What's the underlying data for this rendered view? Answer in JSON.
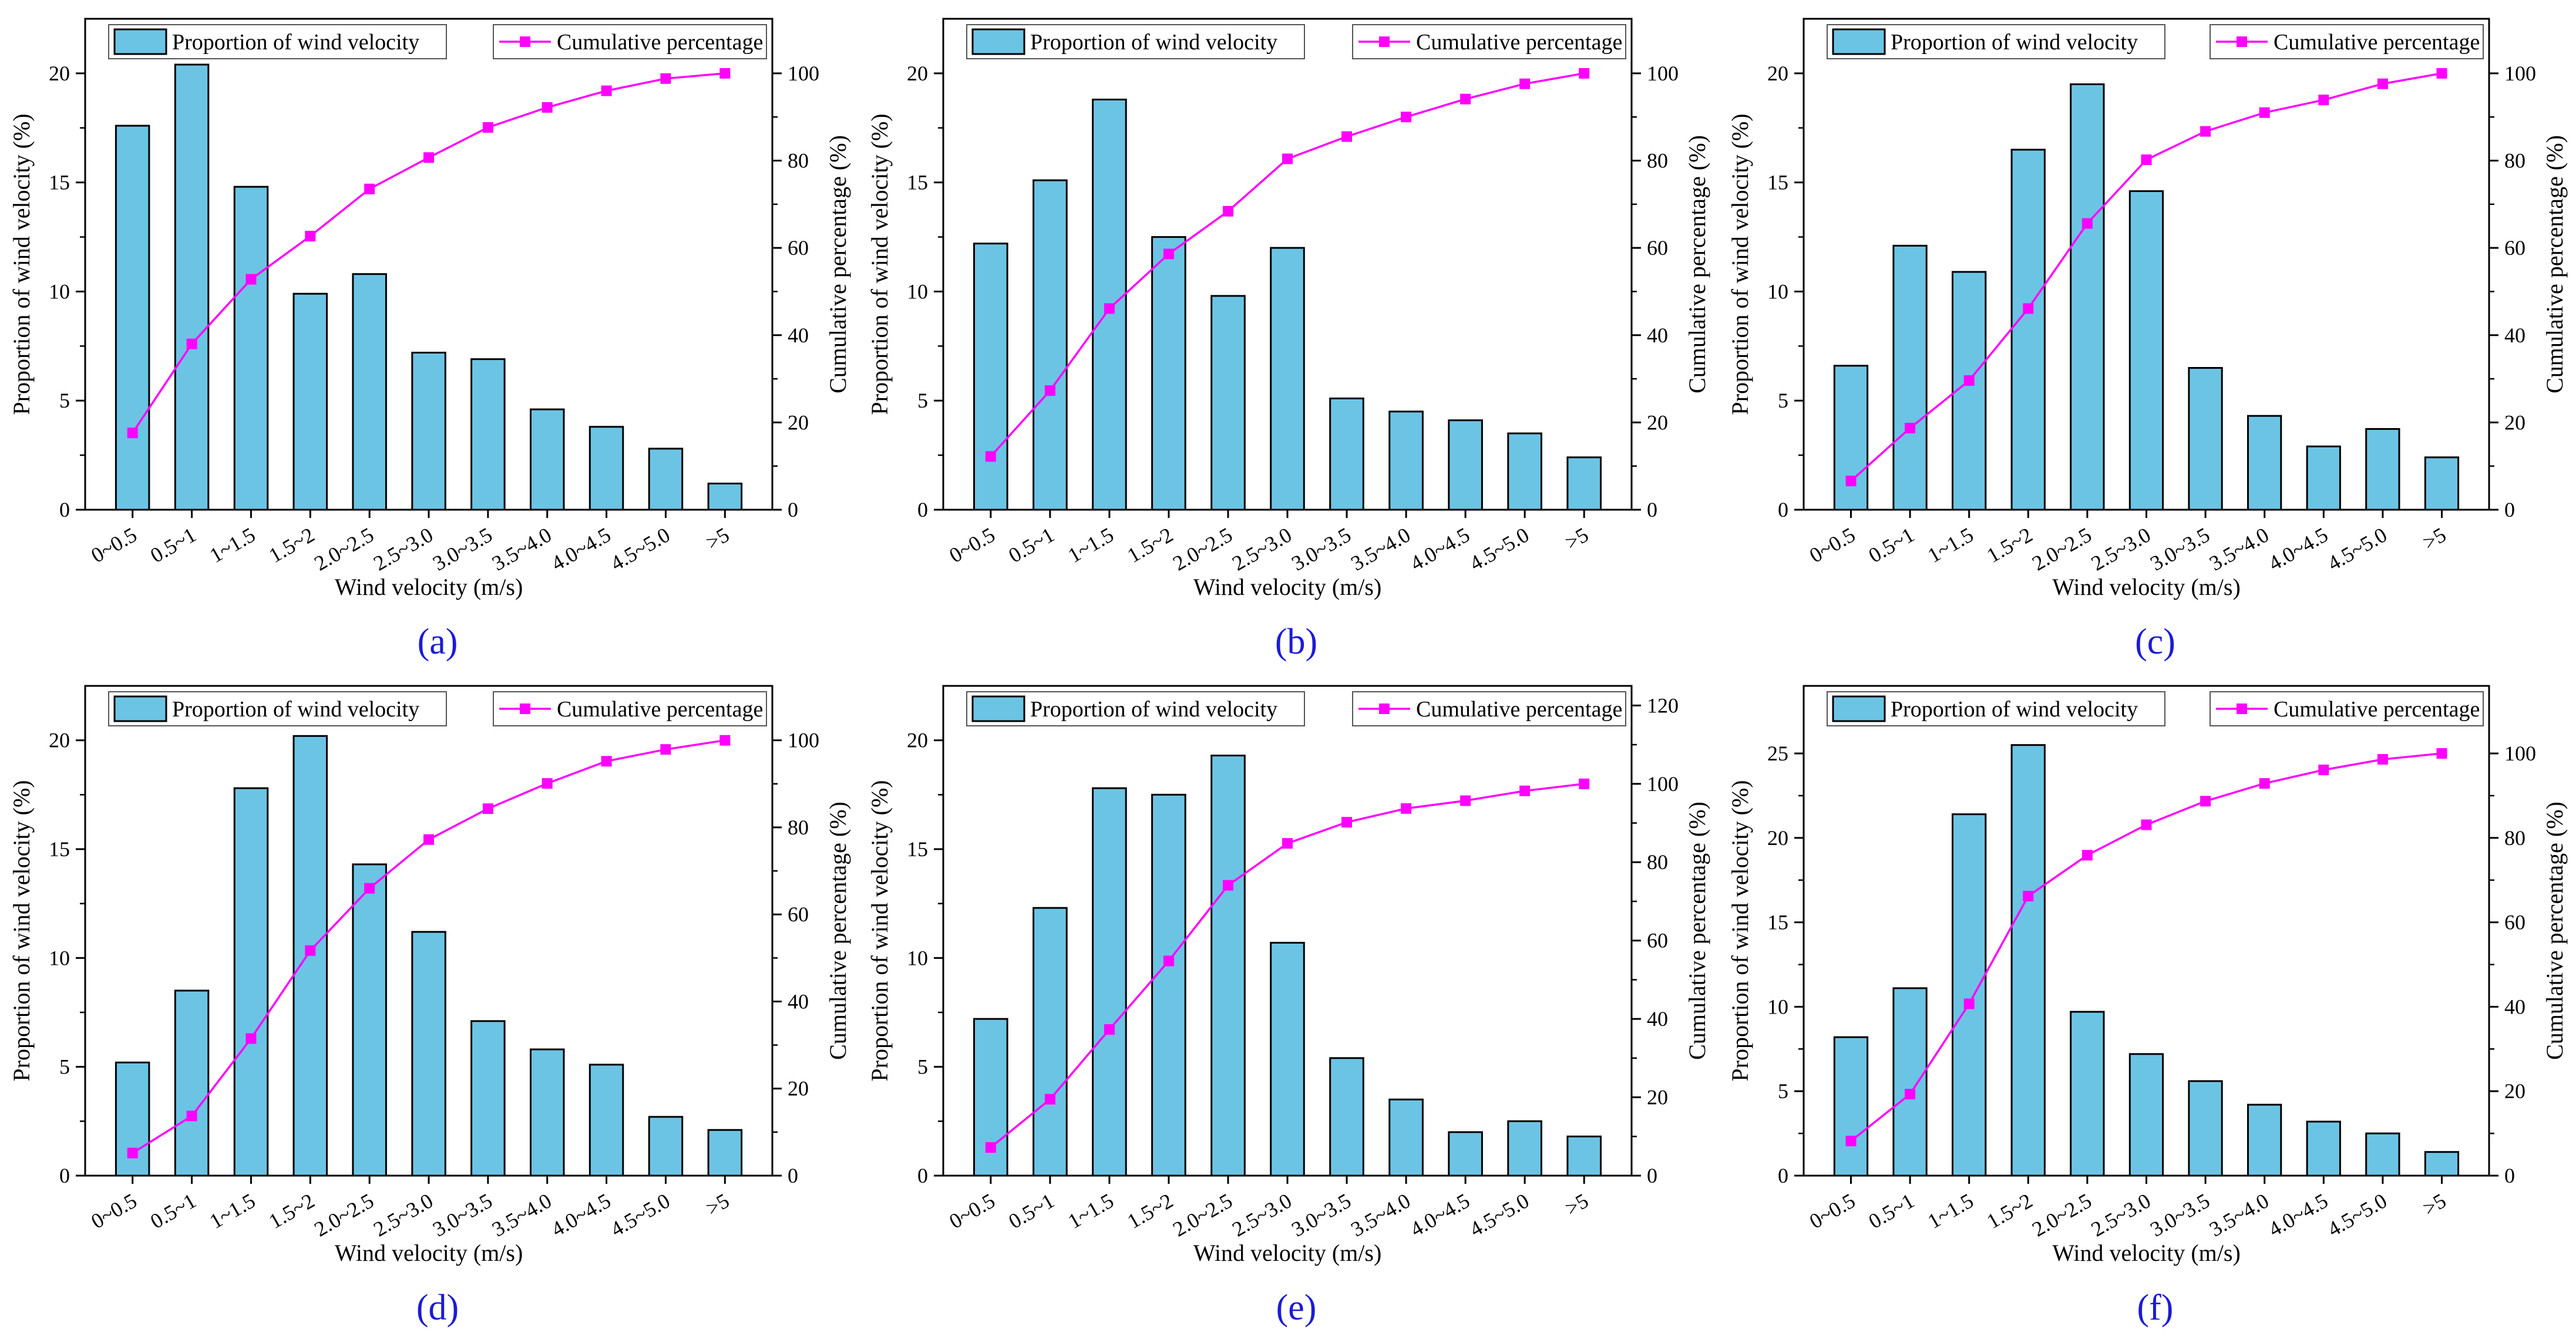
{
  "figure": {
    "panel_label_color": "#1b1bd6",
    "bar_color": "#6cc4e4",
    "line_color": "#ff00ff"
  },
  "chart_data": [
    {
      "type": "bar",
      "panel": "(a)",
      "categories": [
        "0~0.5",
        "0.5~1",
        "1~1.5",
        "1.5~2",
        "2.0~2.5",
        "2.5~3.0",
        "3.0~3.5",
        "3.5~4.0",
        "4.0~4.5",
        "4.5~5.0",
        ">5"
      ],
      "xlabel": "Wind velocity (m/s)",
      "ylabel": "Proportion of wind velocity (%)",
      "y2label": "Cumulative percentage (%)",
      "ylim": [
        0,
        22.5
      ],
      "yticks": [
        0,
        5,
        10,
        15,
        20
      ],
      "y2lim": [
        0,
        112.5
      ],
      "y2ticks": [
        0,
        20,
        40,
        60,
        80,
        100
      ],
      "legend": [
        "Proportion of wind velocity",
        "Cumulative percentage"
      ],
      "series": [
        {
          "name": "Proportion of wind velocity",
          "type": "bar",
          "values": [
            17.6,
            20.4,
            14.8,
            9.9,
            10.8,
            7.2,
            6.9,
            4.6,
            3.8,
            2.8,
            1.2
          ]
        },
        {
          "name": "Cumulative percentage",
          "type": "line",
          "axis": "right",
          "values": [
            17.6,
            38.0,
            52.8,
            62.7,
            73.5,
            80.7,
            87.6,
            92.2,
            96.0,
            98.8,
            100
          ]
        }
      ]
    },
    {
      "type": "bar",
      "panel": "(b)",
      "categories": [
        "0~0.5",
        "0.5~1",
        "1~1.5",
        "1.5~2",
        "2.0~2.5",
        "2.5~3.0",
        "3.0~3.5",
        "3.5~4.0",
        "4.0~4.5",
        "4.5~5.0",
        ">5"
      ],
      "xlabel": "Wind velocity (m/s)",
      "ylabel": "Proportion of wind velocity (%)",
      "y2label": "Cumulative percentage (%)",
      "ylim": [
        0,
        22.5
      ],
      "yticks": [
        0,
        5,
        10,
        15,
        20
      ],
      "y2lim": [
        0,
        112.5
      ],
      "y2ticks": [
        0,
        20,
        40,
        60,
        80,
        100
      ],
      "legend": [
        "Proportion of wind velocity",
        "Cumulative percentage"
      ],
      "series": [
        {
          "name": "Proportion of wind velocity",
          "type": "bar",
          "values": [
            12.2,
            15.1,
            18.8,
            12.5,
            9.8,
            12.0,
            5.1,
            4.5,
            4.1,
            3.5,
            2.4
          ]
        },
        {
          "name": "Cumulative percentage",
          "type": "line",
          "axis": "right",
          "values": [
            12.2,
            27.3,
            46.1,
            58.6,
            68.4,
            80.4,
            85.5,
            90.0,
            94.1,
            97.6,
            100
          ]
        }
      ]
    },
    {
      "type": "bar",
      "panel": "(c)",
      "categories": [
        "0~0.5",
        "0.5~1",
        "1~1.5",
        "1.5~2",
        "2.0~2.5",
        "2.5~3.0",
        "3.0~3.5",
        "3.5~4.0",
        "4.0~4.5",
        "4.5~5.0",
        ">5"
      ],
      "xlabel": "Wind velocity (m/s)",
      "ylabel": "Proportion of wind velocity (%)",
      "y2label": "Cumulative percentage (%)",
      "ylim": [
        0,
        22.5
      ],
      "yticks": [
        0,
        5,
        10,
        15,
        20
      ],
      "y2lim": [
        0,
        112.5
      ],
      "y2ticks": [
        0,
        20,
        40,
        60,
        80,
        100
      ],
      "legend": [
        "Proportion of wind velocity",
        "Cumulative percentage"
      ],
      "series": [
        {
          "name": "Proportion of wind velocity",
          "type": "bar",
          "values": [
            6.6,
            12.1,
            10.9,
            16.5,
            19.5,
            14.6,
            6.5,
            4.3,
            2.9,
            3.7,
            2.4
          ]
        },
        {
          "name": "Cumulative percentage",
          "type": "line",
          "axis": "right",
          "values": [
            6.6,
            18.7,
            29.6,
            46.1,
            65.6,
            80.2,
            86.7,
            91.0,
            93.9,
            97.6,
            100
          ]
        }
      ]
    },
    {
      "type": "bar",
      "panel": "(d)",
      "categories": [
        "0~0.5",
        "0.5~1",
        "1~1.5",
        "1.5~2",
        "2.0~2.5",
        "2.5~3.0",
        "3.0~3.5",
        "3.5~4.0",
        "4.0~4.5",
        "4.5~5.0",
        ">5"
      ],
      "xlabel": "Wind velocity (m/s)",
      "ylabel": "Proportion of wind velocity (%)",
      "y2label": "Cumulative percentage (%)",
      "ylim": [
        0,
        22.5
      ],
      "yticks": [
        0,
        5,
        10,
        15,
        20
      ],
      "y2lim": [
        0,
        112.5
      ],
      "y2ticks": [
        0,
        20,
        40,
        60,
        80,
        100
      ],
      "legend": [
        "Proportion of wind velocity",
        "Cumulative percentage"
      ],
      "series": [
        {
          "name": "Proportion of wind velocity",
          "type": "bar",
          "values": [
            5.2,
            8.5,
            17.8,
            20.2,
            14.3,
            11.2,
            7.1,
            5.8,
            5.1,
            2.7,
            2.1
          ]
        },
        {
          "name": "Cumulative percentage",
          "type": "line",
          "axis": "right",
          "values": [
            5.2,
            13.7,
            31.5,
            51.7,
            66.0,
            77.2,
            84.3,
            90.1,
            95.2,
            97.9,
            100
          ]
        }
      ]
    },
    {
      "type": "bar",
      "panel": "(e)",
      "categories": [
        "0~0.5",
        "0.5~1",
        "1~1.5",
        "1.5~2",
        "2.0~2.5",
        "2.5~3.0",
        "3.0~3.5",
        "3.5~4.0",
        "4.0~4.5",
        "4.5~5.0",
        ">5"
      ],
      "xlabel": "Wind velocity (m/s)",
      "ylabel": "Proportion of wind velocity (%)",
      "y2label": "Cumulative percentage (%)",
      "ylim": [
        0,
        22.5
      ],
      "yticks": [
        0,
        5,
        10,
        15,
        20
      ],
      "y2lim": [
        0,
        125
      ],
      "y2ticks": [
        0,
        20,
        40,
        60,
        80,
        100,
        120
      ],
      "legend": [
        "Proportion of wind velocity",
        "Cumulative percentage"
      ],
      "series": [
        {
          "name": "Proportion of wind velocity",
          "type": "bar",
          "values": [
            7.2,
            12.3,
            17.8,
            17.5,
            19.3,
            10.7,
            5.4,
            3.5,
            2.0,
            2.5,
            1.8
          ]
        },
        {
          "name": "Cumulative percentage",
          "type": "line",
          "axis": "right",
          "values": [
            7.2,
            19.5,
            37.3,
            54.8,
            74.1,
            84.8,
            90.2,
            93.7,
            95.7,
            98.2,
            100
          ]
        }
      ]
    },
    {
      "type": "bar",
      "panel": "(f)",
      "categories": [
        "0~0.5",
        "0.5~1",
        "1~1.5",
        "1.5~2",
        "2.0~2.5",
        "2.5~3.0",
        "3.0~3.5",
        "3.5~4.0",
        "4.0~4.5",
        "4.5~5.0",
        ">5"
      ],
      "xlabel": "Wind velocity (m/s)",
      "ylabel": "Proportion of wind velocity (%)",
      "y2label": "Cumulative percentage (%)",
      "ylim": [
        0,
        29
      ],
      "yticks": [
        0,
        5,
        10,
        15,
        20,
        25
      ],
      "y2lim": [
        0,
        116
      ],
      "y2ticks": [
        0,
        20,
        40,
        60,
        80,
        100
      ],
      "legend": [
        "Proportion of wind velocity",
        "Cumulative percentage"
      ],
      "series": [
        {
          "name": "Proportion of wind velocity",
          "type": "bar",
          "values": [
            8.2,
            11.1,
            21.4,
            25.5,
            9.7,
            7.2,
            5.6,
            4.2,
            3.2,
            2.5,
            1.4
          ]
        },
        {
          "name": "Cumulative percentage",
          "type": "line",
          "axis": "right",
          "values": [
            8.2,
            19.3,
            40.7,
            66.2,
            75.9,
            83.1,
            88.7,
            92.9,
            96.1,
            98.6,
            100
          ]
        }
      ]
    }
  ]
}
